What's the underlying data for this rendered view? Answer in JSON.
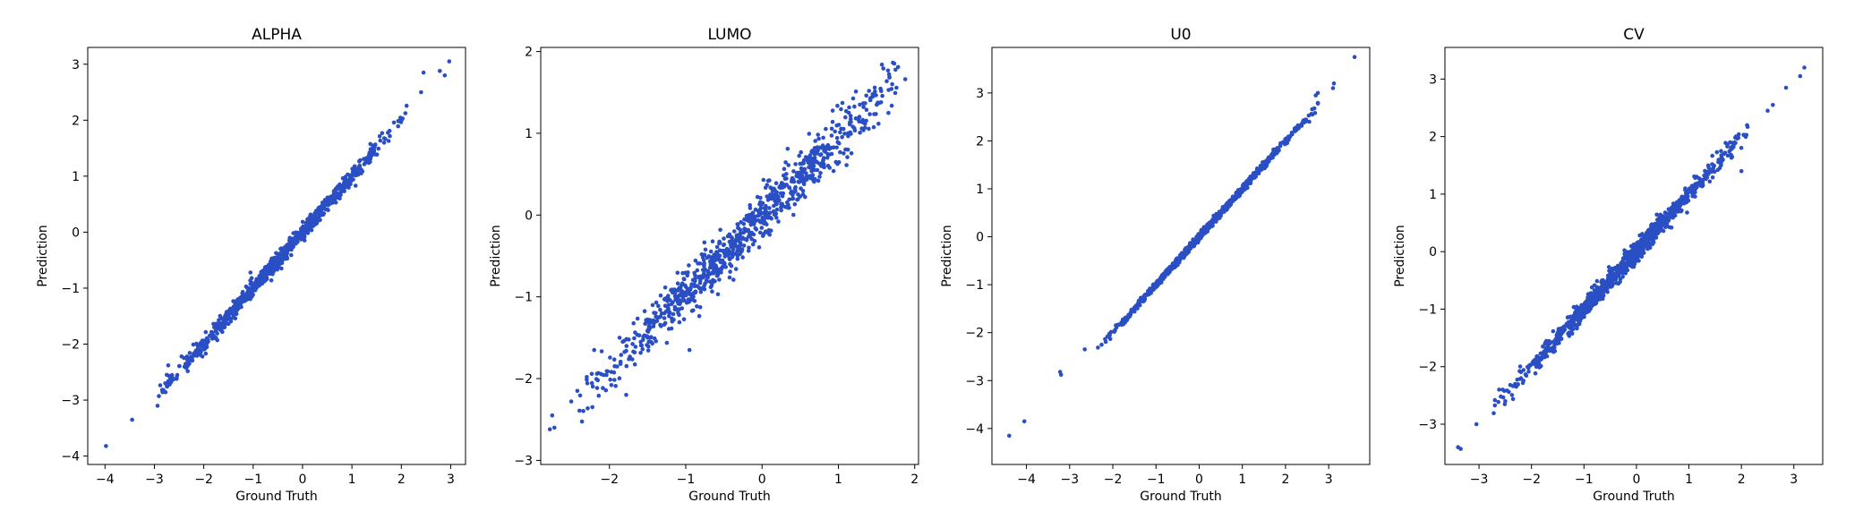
{
  "chart_data": [
    {
      "type": "scatter",
      "title": "ALPHA",
      "xlabel": "Ground Truth",
      "ylabel": "Prediction",
      "xlim": [
        -4.35,
        3.3
      ],
      "ylim": [
        -4.15,
        3.3
      ],
      "xticks": [
        -4,
        -3,
        -2,
        -1,
        0,
        1,
        2,
        3
      ],
      "yticks": [
        -4,
        -3,
        -2,
        -1,
        0,
        1,
        2,
        3
      ],
      "point_color": "#2a4fc4",
      "grid": false,
      "legend": "none",
      "approx_points": 900,
      "trend_slope": 1.0,
      "trend_intercept": 0.0,
      "noise_sd": 0.07,
      "x_range_dense": [
        -2.8,
        2.0
      ],
      "outliers": [
        [
          -3.98,
          -3.82
        ],
        [
          -3.45,
          -3.35
        ],
        [
          -2.82,
          -2.82
        ],
        [
          -2.78,
          -2.7
        ],
        [
          -2.75,
          -2.55
        ],
        [
          -2.72,
          -2.38
        ],
        [
          -2.55,
          -2.62
        ],
        [
          -2.45,
          -2.22
        ],
        [
          2.4,
          2.5
        ],
        [
          2.45,
          2.85
        ],
        [
          2.78,
          2.88
        ],
        [
          2.88,
          2.8
        ],
        [
          2.97,
          3.05
        ]
      ]
    },
    {
      "type": "scatter",
      "title": "LUMO",
      "xlabel": "Ground Truth",
      "ylabel": "Prediction",
      "xlim": [
        -2.9,
        2.05
      ],
      "ylim": [
        -3.05,
        2.05
      ],
      "xticks": [
        -2,
        -1,
        0,
        1,
        2
      ],
      "yticks": [
        -3,
        -2,
        -1,
        0,
        1,
        2
      ],
      "point_color": "#2a4fc4",
      "grid": false,
      "legend": "none",
      "approx_points": 900,
      "trend_slope": 0.95,
      "trend_intercept": 0.0,
      "noise_sd": 0.15,
      "x_range_dense": [
        -2.3,
        1.8
      ],
      "outliers": [
        [
          -2.78,
          -2.62
        ],
        [
          -2.72,
          -2.6
        ],
        [
          -2.75,
          -2.45
        ],
        [
          -2.5,
          -2.28
        ],
        [
          -2.42,
          -2.15
        ],
        [
          -2.2,
          -1.65
        ],
        [
          -1.78,
          -2.2
        ],
        [
          -0.95,
          -1.65
        ]
      ]
    },
    {
      "type": "scatter",
      "title": "U0",
      "xlabel": "Ground Truth",
      "ylabel": "Prediction",
      "xlim": [
        -4.8,
        3.95
      ],
      "ylim": [
        -4.75,
        3.95
      ],
      "xticks": [
        -4,
        -3,
        -2,
        -1,
        0,
        1,
        2,
        3
      ],
      "yticks": [
        -4,
        -3,
        -2,
        -1,
        0,
        1,
        2,
        3
      ],
      "point_color": "#2a4fc4",
      "grid": false,
      "legend": "none",
      "approx_points": 900,
      "trend_slope": 1.0,
      "trend_intercept": 0.0,
      "noise_sd": 0.035,
      "x_range_dense": [
        -2.2,
        2.6
      ],
      "outliers": [
        [
          -4.4,
          -4.15
        ],
        [
          -4.05,
          -3.85
        ],
        [
          -3.22,
          -2.82
        ],
        [
          -3.2,
          -2.88
        ],
        [
          -2.65,
          -2.35
        ],
        [
          2.55,
          2.4
        ],
        [
          2.62,
          2.55
        ],
        [
          2.7,
          2.95
        ],
        [
          2.75,
          3.0
        ],
        [
          3.1,
          3.1
        ],
        [
          3.12,
          3.2
        ],
        [
          3.6,
          3.75
        ]
      ]
    },
    {
      "type": "scatter",
      "title": "CV",
      "xlabel": "Ground Truth",
      "ylabel": "Prediction",
      "xlim": [
        -3.65,
        3.55
      ],
      "ylim": [
        -3.7,
        3.55
      ],
      "xticks": [
        -3,
        -2,
        -1,
        0,
        1,
        2,
        3
      ],
      "yticks": [
        -3,
        -2,
        -1,
        0,
        1,
        2,
        3
      ],
      "point_color": "#2a4fc4",
      "grid": false,
      "legend": "none",
      "approx_points": 1000,
      "trend_slope": 1.0,
      "trend_intercept": 0.0,
      "noise_sd": 0.09,
      "x_range_dense": [
        -2.6,
        2.0
      ],
      "outliers": [
        [
          -3.4,
          -3.4
        ],
        [
          -3.35,
          -3.43
        ],
        [
          -3.05,
          -3.0
        ],
        [
          -2.55,
          -2.4
        ],
        [
          -2.5,
          -2.6
        ],
        [
          2.5,
          2.45
        ],
        [
          2.6,
          2.55
        ],
        [
          2.85,
          2.85
        ],
        [
          3.12,
          3.05
        ],
        [
          3.2,
          3.2
        ],
        [
          2.0,
          1.4
        ]
      ]
    }
  ]
}
